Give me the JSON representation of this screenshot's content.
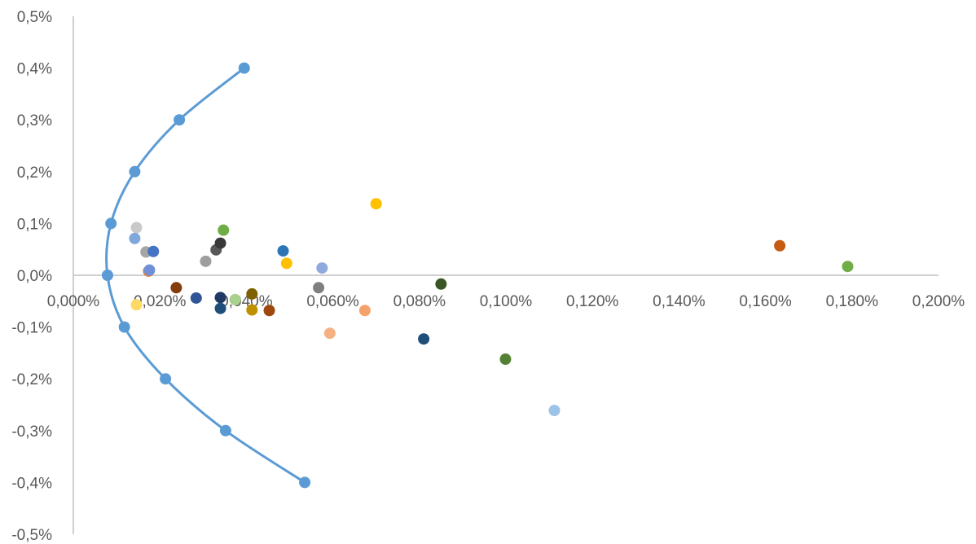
{
  "chart_data": {
    "type": "scatter",
    "title": "",
    "xlabel": "",
    "ylabel": "",
    "xlim": [
      0,
      0.002
    ],
    "ylim": [
      -0.005,
      0.005
    ],
    "x_ticks": [
      0,
      0.0002,
      0.0004,
      0.0006,
      0.0008,
      0.001,
      0.0012,
      0.0014,
      0.0016,
      0.0018,
      0.002
    ],
    "x_tick_labels": [
      "0,000%",
      "0,020%",
      "0,040%",
      "0,060%",
      "0,080%",
      "0,100%",
      "0,120%",
      "0,140%",
      "0,160%",
      "0,180%",
      "0,200%"
    ],
    "y_ticks": [
      0.005,
      0.004,
      0.003,
      0.002,
      0.001,
      0,
      -0.001,
      -0.002,
      -0.003,
      -0.004,
      -0.005
    ],
    "y_tick_labels": [
      "0,5%",
      "0,4%",
      "0,3%",
      "0,2%",
      "0,1%",
      "0,0%",
      "-0,1%",
      "-0,2%",
      "-0,3%",
      "-0,4%",
      "-0,5%"
    ],
    "grid": false,
    "legend": "none",
    "frontier": {
      "color": "#5B9BD5",
      "points": [
        {
          "x": 0.000395,
          "y": 0.004
        },
        {
          "x": 0.000245,
          "y": 0.003
        },
        {
          "x": 0.000142,
          "y": 0.002
        },
        {
          "x": 8.7e-05,
          "y": 0.001
        },
        {
          "x": 7.9e-05,
          "y": 0.0
        },
        {
          "x": 0.000118,
          "y": -0.001
        },
        {
          "x": 0.000213,
          "y": -0.002
        },
        {
          "x": 0.000352,
          "y": -0.003
        },
        {
          "x": 0.000535,
          "y": -0.004
        }
      ]
    },
    "assets": [
      {
        "x": 0.0007,
        "y": 0.00138,
        "color": "#FFC000"
      },
      {
        "x": 0.001633,
        "y": 0.00057,
        "color": "#C55A11"
      },
      {
        "x": 0.00179,
        "y": 0.00017,
        "color": "#70AD47"
      },
      {
        "x": 0.000146,
        "y": 0.00092,
        "color": "#C9C9C9"
      },
      {
        "x": 0.000142,
        "y": 0.00071,
        "color": "#7EA8DC"
      },
      {
        "x": 0.000168,
        "y": 0.00045,
        "color": "#A5A5A5"
      },
      {
        "x": 0.000185,
        "y": 0.00046,
        "color": "#4472C4"
      },
      {
        "x": 0.000174,
        "y": 8e-05,
        "color": "#ED7D31"
      },
      {
        "x": 0.000176,
        "y": 0.0001,
        "color": "#6F8FD8"
      },
      {
        "x": 0.000146,
        "y": -0.00057,
        "color": "#FFD966"
      },
      {
        "x": 0.000238,
        "y": -0.00024,
        "color": "#843C0C"
      },
      {
        "x": 0.000284,
        "y": -0.00044,
        "color": "#2F5597"
      },
      {
        "x": 0.000306,
        "y": 0.00027,
        "color": "#9E9E9E"
      },
      {
        "x": 0.00033,
        "y": 0.00049,
        "color": "#595959"
      },
      {
        "x": 0.00034,
        "y": 0.00062,
        "color": "#3A3A3A"
      },
      {
        "x": 0.000347,
        "y": 0.00087,
        "color": "#70AD47"
      },
      {
        "x": 0.00034,
        "y": -0.00043,
        "color": "#203864"
      },
      {
        "x": 0.00034,
        "y": -0.00064,
        "color": "#1F4E79"
      },
      {
        "x": 0.000374,
        "y": -0.00047,
        "color": "#A9D18E"
      },
      {
        "x": 0.000413,
        "y": -0.00036,
        "color": "#7F6000"
      },
      {
        "x": 0.000413,
        "y": -0.00067,
        "color": "#BF9000"
      },
      {
        "x": 0.000453,
        "y": -0.00068,
        "color": "#9E480E"
      },
      {
        "x": 0.000485,
        "y": 0.00047,
        "color": "#2E75B6"
      },
      {
        "x": 0.000493,
        "y": 0.00023,
        "color": "#FFC000"
      },
      {
        "x": 0.000567,
        "y": -0.00024,
        "color": "#7F7F7F"
      },
      {
        "x": 0.000575,
        "y": 0.00014,
        "color": "#8FAADC"
      },
      {
        "x": 0.000593,
        "y": -0.00112,
        "color": "#F4B183"
      },
      {
        "x": 0.000674,
        "y": -0.00068,
        "color": "#F4A26A"
      },
      {
        "x": 0.00081,
        "y": -0.00123,
        "color": "#1F4E79"
      },
      {
        "x": 0.00085,
        "y": -0.00017,
        "color": "#375623"
      },
      {
        "x": 0.000999,
        "y": -0.00162,
        "color": "#548235"
      },
      {
        "x": 0.001112,
        "y": -0.00261,
        "color": "#9DC3E6"
      }
    ]
  }
}
